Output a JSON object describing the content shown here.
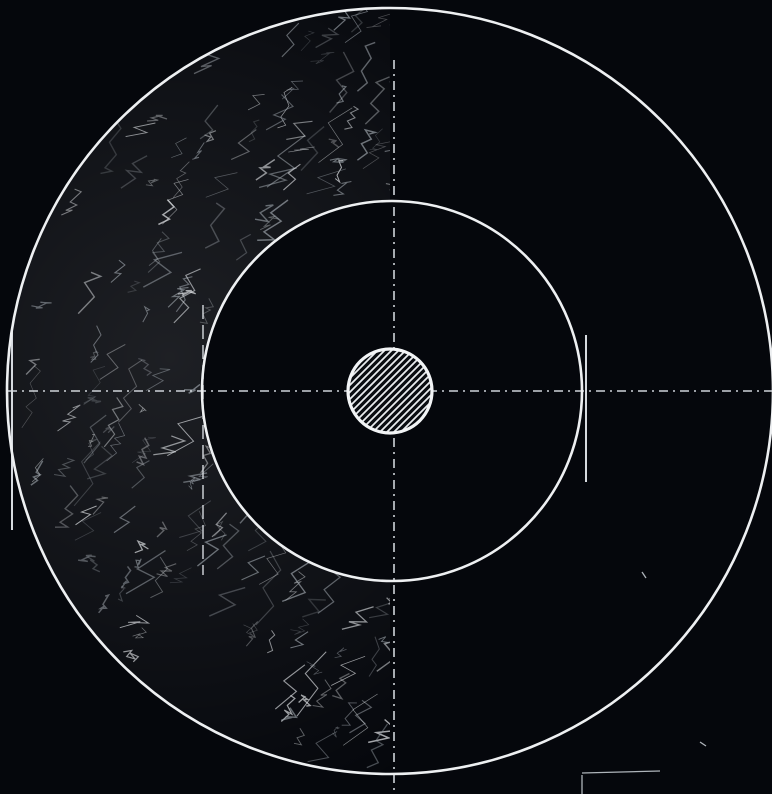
{
  "figure": {
    "background": "#05070c",
    "chalk": "#e9ecef",
    "chalk_dim": "#9aa1a8",
    "description_free": true
  },
  "diagram": {
    "outer_circle": {
      "present": true
    },
    "inner_circle": {
      "present": true
    },
    "center_disc": {
      "hatched": true
    },
    "crosshair": {
      "style": "dashed"
    },
    "shading": {
      "side": "left",
      "style": "crescent scribble"
    }
  }
}
